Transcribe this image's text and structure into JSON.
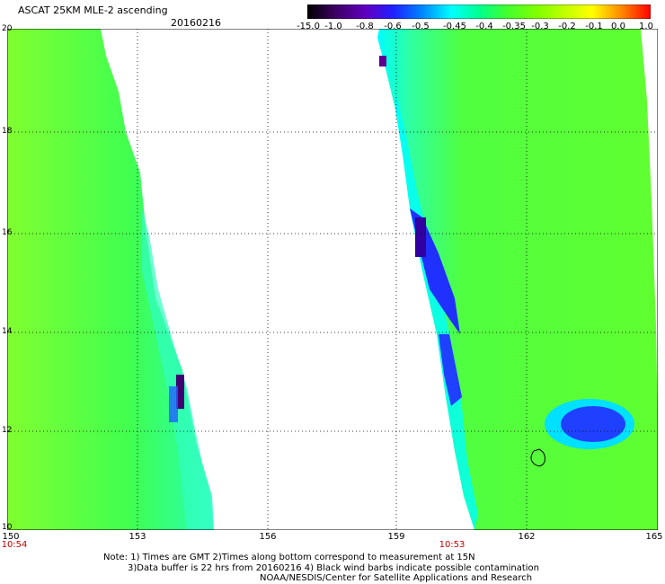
{
  "header": {
    "title": "ASCAT 25KM MLE-2 ascending",
    "date": "20160216"
  },
  "colorbar": {
    "labels": [
      "-15.0",
      "-1.0",
      "-0.8",
      "-0.6",
      "-0.5",
      "-0.45",
      "-0.4",
      "-0.35",
      "-0.3",
      "-0.2",
      "-0.1",
      "0.0",
      "1.0"
    ],
    "colors": [
      "#000000",
      "#3c0060",
      "#6000a0",
      "#2020ff",
      "#0080ff",
      "#00ffff",
      "#00ffa0",
      "#40ff20",
      "#80ff00",
      "#c0ff00",
      "#ffff00",
      "#ffa000",
      "#ff2000",
      "#ff0000"
    ]
  },
  "axes": {
    "y_labels": [
      "20",
      "18",
      "16",
      "14",
      "12",
      "10"
    ],
    "x_labels": [
      "150",
      "153",
      "156",
      "159",
      "162",
      "165"
    ],
    "time_labels": [
      "10:54",
      "10:53"
    ]
  },
  "notes": {
    "line1": "Note: 1) Times are GMT 2)Times along bottom correspond to measurement at 15N",
    "line2": "3)Data buffer is 22 hrs from 20160216 4) Black wind barbs indicate possible contamination",
    "line3": "NOAA/NESDIS/Center for Satellite Applications and Research"
  }
}
